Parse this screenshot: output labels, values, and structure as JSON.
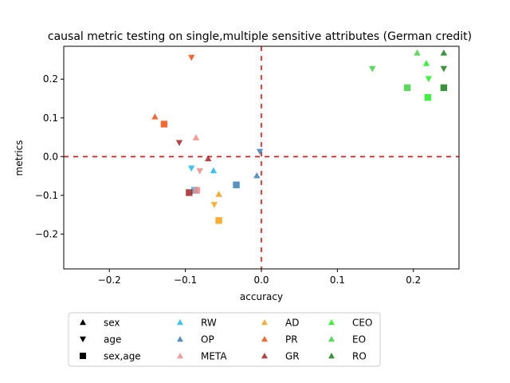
{
  "chart_data": {
    "type": "scatter",
    "title": "causal metric testing on single,multiple sensitive attributes (German credit)",
    "xlabel": "accuracy",
    "ylabel": "metrics",
    "xlim": [
      -0.26,
      0.26
    ],
    "ylim": [
      -0.29,
      0.285
    ],
    "xticks": [
      -0.2,
      -0.1,
      0.0,
      0.1,
      0.2
    ],
    "xtick_labels": [
      "−0.2",
      "−0.1",
      "0.0",
      "0.1",
      "0.2"
    ],
    "yticks": [
      -0.2,
      -0.1,
      0.0,
      0.1,
      0.2
    ],
    "ytick_labels": [
      "−0.2",
      "−0.1",
      "0.0",
      "0.1",
      "0.2"
    ],
    "reference_lines": {
      "x": 0,
      "y": 0,
      "color": "#e8100e",
      "style": "dashed"
    },
    "grid": false,
    "legend_position": "below",
    "marker_legend": [
      {
        "label": "sex",
        "marker": "^"
      },
      {
        "label": "age",
        "marker": "v"
      },
      {
        "label": "sex,age",
        "marker": "s"
      }
    ],
    "series": [
      {
        "name": "RW",
        "color": "#1bb8f0",
        "points": [
          {
            "marker": "v",
            "x": -0.092,
            "y": -0.03
          },
          {
            "marker": "^",
            "x": -0.063,
            "y": -0.036
          },
          {
            "marker": "s",
            "x": -0.088,
            "y": -0.087
          }
        ]
      },
      {
        "name": "OP",
        "color": "#3a7fb8",
        "points": [
          {
            "marker": "v",
            "x": -0.002,
            "y": 0.013
          },
          {
            "marker": "^",
            "x": -0.006,
            "y": -0.049
          },
          {
            "marker": "s",
            "x": -0.033,
            "y": -0.073
          }
        ]
      },
      {
        "name": "META",
        "color": "#f08a8a",
        "points": [
          {
            "marker": "^",
            "x": -0.086,
            "y": 0.049
          },
          {
            "marker": "v",
            "x": -0.081,
            "y": -0.037
          },
          {
            "marker": "s",
            "x": -0.085,
            "y": -0.087
          }
        ]
      },
      {
        "name": "AD",
        "color": "#f5a10f",
        "points": [
          {
            "marker": "^",
            "x": -0.056,
            "y": -0.097
          },
          {
            "marker": "v",
            "x": -0.062,
            "y": -0.124
          },
          {
            "marker": "s",
            "x": -0.056,
            "y": -0.165
          }
        ]
      },
      {
        "name": "PR",
        "color": "#f04f10",
        "points": [
          {
            "marker": "v",
            "x": -0.092,
            "y": 0.256
          },
          {
            "marker": "^",
            "x": -0.14,
            "y": 0.103
          },
          {
            "marker": "s",
            "x": -0.128,
            "y": 0.084
          }
        ]
      },
      {
        "name": "GR",
        "color": "#a82222",
        "points": [
          {
            "marker": "v",
            "x": -0.108,
            "y": 0.036
          },
          {
            "marker": "^",
            "x": -0.07,
            "y": -0.005
          },
          {
            "marker": "s",
            "x": -0.095,
            "y": -0.093
          }
        ]
      },
      {
        "name": "CEO",
        "color": "#1ef01e",
        "points": [
          {
            "marker": "^",
            "x": 0.217,
            "y": 0.241
          },
          {
            "marker": "v",
            "x": 0.22,
            "y": 0.201
          },
          {
            "marker": "s",
            "x": 0.219,
            "y": 0.153
          }
        ]
      },
      {
        "name": "EO",
        "color": "#3fd23f",
        "points": [
          {
            "marker": "^",
            "x": 0.205,
            "y": 0.268
          },
          {
            "marker": "v",
            "x": 0.146,
            "y": 0.227
          },
          {
            "marker": "s",
            "x": 0.192,
            "y": 0.178
          }
        ]
      },
      {
        "name": "RO",
        "color": "#1a7f1a",
        "points": [
          {
            "marker": "^",
            "x": 0.24,
            "y": 0.268
          },
          {
            "marker": "v",
            "x": 0.24,
            "y": 0.227
          },
          {
            "marker": "s",
            "x": 0.24,
            "y": 0.178
          }
        ]
      }
    ]
  }
}
